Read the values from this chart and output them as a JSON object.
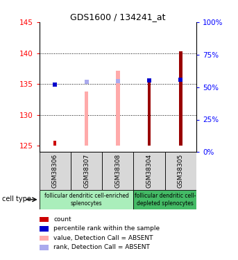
{
  "title": "GDS1600 / 134241_at",
  "samples": [
    "GSM38306",
    "GSM38307",
    "GSM38308",
    "GSM38304",
    "GSM38305"
  ],
  "ylim_left": [
    124,
    145
  ],
  "ylim_right": [
    0,
    100
  ],
  "yticks_left": [
    125,
    130,
    135,
    140,
    145
  ],
  "yticks_right": [
    0,
    25,
    50,
    75,
    100
  ],
  "baseline": 125,
  "count_tops": [
    125.8,
    125.1,
    125.1,
    125.1,
    125.1
  ],
  "count_color": "#cc0000",
  "value_absent_tops": [
    null,
    133.8,
    137.2,
    null,
    null
  ],
  "value_absent_color": "#ffaaaa",
  "rank_absent_vals": [
    null,
    135.3,
    135.5,
    null,
    null
  ],
  "rank_absent_color": "#aaaaee",
  "percentile_rank_values": [
    134.9,
    null,
    null,
    135.6,
    135.7
  ],
  "percentile_rank_color": "#0000cc",
  "dark_red_tops": [
    null,
    null,
    null,
    135.6,
    140.3
  ],
  "dark_red_color": "#990000",
  "cell_type_groups": [
    {
      "label": "follicular dendritic cell-enriched\nsplenocytes",
      "start": 0,
      "end": 3,
      "color": "#aaeebb"
    },
    {
      "label": "follicular dendritic cell-\ndepleted splenocytes",
      "start": 3,
      "end": 5,
      "color": "#44bb66"
    }
  ],
  "legend_items": [
    {
      "color": "#cc0000",
      "label": "count"
    },
    {
      "color": "#0000cc",
      "label": "percentile rank within the sample"
    },
    {
      "color": "#ffaaaa",
      "label": "value, Detection Call = ABSENT"
    },
    {
      "color": "#aaaaee",
      "label": "rank, Detection Call = ABSENT"
    }
  ],
  "bar_width": 0.1,
  "pink_bar_width": 0.12
}
